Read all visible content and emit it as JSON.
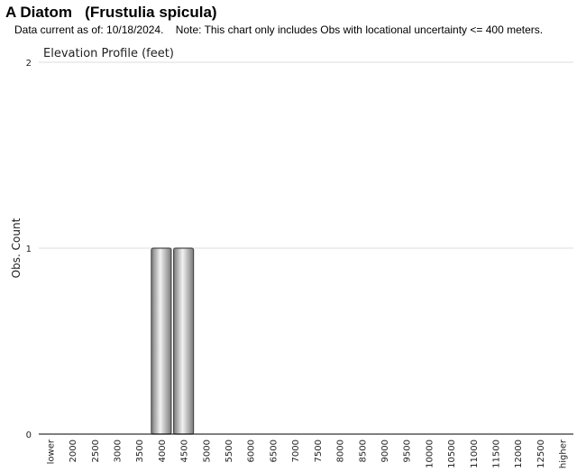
{
  "header": {
    "title": "A Diatom   (Frustulia spicula)",
    "subtitle": "Data current as of: 10/18/2024.    Note: This chart only includes Obs with locational uncertainty <= 400 meters."
  },
  "chart_data": {
    "type": "bar",
    "title": "Elevation Profile (feet)",
    "xlabel": "",
    "ylabel": "Obs. Count",
    "ylim": [
      0,
      2
    ],
    "yticks": [
      0,
      1,
      2
    ],
    "grid": true,
    "categories": [
      "lower",
      "2000",
      "2500",
      "3000",
      "3500",
      "4000",
      "4500",
      "5000",
      "5500",
      "6000",
      "6500",
      "7000",
      "7500",
      "8000",
      "8500",
      "9000",
      "9500",
      "10000",
      "10500",
      "11000",
      "11500",
      "12000",
      "12500",
      "higher"
    ],
    "values": [
      0,
      0,
      0,
      0,
      0,
      1,
      1,
      0,
      0,
      0,
      0,
      0,
      0,
      0,
      0,
      0,
      0,
      0,
      0,
      0,
      0,
      0,
      0,
      0
    ],
    "colors": {
      "bar_edge": "#4a4a4a",
      "bar_light": "#f2f2f2",
      "bar_dark": "#7a7a7a",
      "grid": "#dddddd",
      "axis": "#000000"
    }
  }
}
